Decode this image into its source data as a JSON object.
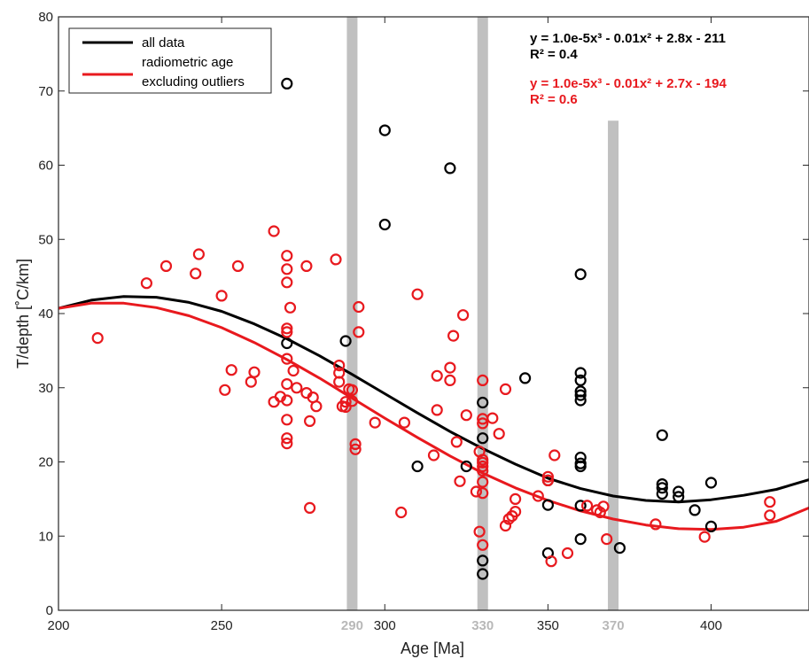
{
  "chart_data": {
    "type": "scatter",
    "xlabel": "Age [Ma]",
    "ylabel": "T/depth [˚C/km]",
    "xlim": [
      200,
      430
    ],
    "ylim": [
      0,
      80
    ],
    "x_ticks": [
      "200",
      "250",
      "300",
      "350",
      "400"
    ],
    "y_ticks": [
      "0",
      "10",
      "20",
      "30",
      "40",
      "50",
      "60",
      "70",
      "80"
    ],
    "grid": false,
    "legend_position": "top-left",
    "legend": [
      {
        "label": "all data",
        "color": "#000000"
      },
      {
        "label": "radiometric age",
        "color": "#e8191e"
      },
      {
        "label": "excluding outliers",
        "color": "#e8191e"
      }
    ],
    "annotations": {
      "black_equation": "y = 1.0e-5x³ - 0.01x² + 2.8x - 211",
      "black_r2": "R² = 0.4",
      "red_equation": "y = 1.0e-5x³ - 0.01x² + 2.7x - 194",
      "red_r2": "R² = 0.6"
    },
    "bands": [
      {
        "x": 290,
        "label": "290",
        "ymax": 80
      },
      {
        "x": 330,
        "label": "330",
        "ymax": 80
      },
      {
        "x": 370,
        "label": "370",
        "ymax": 66
      }
    ],
    "colors": {
      "all_data": "#000000",
      "radiometric": "#e8191e",
      "band": "#c0c0c0",
      "band_label": "#b8b8b8"
    },
    "series": [
      {
        "name": "all data",
        "color": "#000000",
        "fit_curve": [
          [
            200,
            40.7
          ],
          [
            210,
            41.8
          ],
          [
            220,
            42.3
          ],
          [
            230,
            42.2
          ],
          [
            240,
            41.5
          ],
          [
            250,
            40.3
          ],
          [
            260,
            38.6
          ],
          [
            270,
            36.6
          ],
          [
            280,
            34.3
          ],
          [
            290,
            31.8
          ],
          [
            300,
            29.2
          ],
          [
            310,
            26.6
          ],
          [
            320,
            24.1
          ],
          [
            330,
            21.8
          ],
          [
            340,
            19.7
          ],
          [
            350,
            17.8
          ],
          [
            360,
            16.4
          ],
          [
            370,
            15.4
          ],
          [
            380,
            14.8
          ],
          [
            390,
            14.6
          ],
          [
            400,
            14.9
          ],
          [
            410,
            15.5
          ],
          [
            420,
            16.3
          ],
          [
            430,
            17.6
          ]
        ],
        "points": [
          [
            270,
            71
          ],
          [
            270,
            36
          ],
          [
            288,
            36.3
          ],
          [
            300,
            64.7
          ],
          [
            300,
            52
          ],
          [
            320,
            59.6
          ],
          [
            310,
            19.4
          ],
          [
            325,
            19.4
          ],
          [
            330,
            28
          ],
          [
            330,
            23.2
          ],
          [
            330,
            6.7
          ],
          [
            330,
            4.9
          ],
          [
            343,
            31.3
          ],
          [
            350,
            17.5
          ],
          [
            350,
            14.2
          ],
          [
            350,
            7.7
          ],
          [
            360,
            45.3
          ],
          [
            360,
            32
          ],
          [
            360,
            31
          ],
          [
            360,
            29.5
          ],
          [
            360,
            29
          ],
          [
            360,
            28.3
          ],
          [
            360,
            20.6
          ],
          [
            360,
            19.8
          ],
          [
            360,
            19.4
          ],
          [
            360,
            14.1
          ],
          [
            360,
            9.6
          ],
          [
            372,
            8.4
          ],
          [
            385,
            23.6
          ],
          [
            385,
            17
          ],
          [
            385,
            16.5
          ],
          [
            385,
            15.7
          ],
          [
            390,
            16
          ],
          [
            390,
            15.3
          ],
          [
            395,
            13.5
          ],
          [
            400,
            17.2
          ],
          [
            400,
            11.3
          ]
        ]
      },
      {
        "name": "radiometric age excluding outliers",
        "color": "#e8191e",
        "fit_curve": [
          [
            200,
            40.7
          ],
          [
            210,
            41.4
          ],
          [
            220,
            41.4
          ],
          [
            230,
            40.8
          ],
          [
            240,
            39.7
          ],
          [
            250,
            38.1
          ],
          [
            260,
            36.1
          ],
          [
            270,
            33.8
          ],
          [
            280,
            31.3
          ],
          [
            290,
            28.6
          ],
          [
            300,
            25.9
          ],
          [
            310,
            23.3
          ],
          [
            320,
            20.8
          ],
          [
            330,
            18.5
          ],
          [
            340,
            16.5
          ],
          [
            350,
            14.8
          ],
          [
            360,
            13.4
          ],
          [
            370,
            12.3
          ],
          [
            380,
            11.5
          ],
          [
            390,
            11.0
          ],
          [
            400,
            10.9
          ],
          [
            410,
            11.2
          ],
          [
            420,
            12.0
          ],
          [
            430,
            13.8
          ]
        ],
        "points": [
          [
            212,
            36.7
          ],
          [
            227,
            44.1
          ],
          [
            233,
            46.4
          ],
          [
            242,
            45.4
          ],
          [
            243,
            48
          ],
          [
            250,
            42.4
          ],
          [
            251,
            29.7
          ],
          [
            253,
            32.4
          ],
          [
            255,
            46.4
          ],
          [
            259,
            30.8
          ],
          [
            260,
            32.1
          ],
          [
            266,
            51.1
          ],
          [
            266,
            28.1
          ],
          [
            268,
            28.8
          ],
          [
            270,
            47.8
          ],
          [
            270,
            46
          ],
          [
            270,
            44.2
          ],
          [
            270,
            38
          ],
          [
            270,
            37.5
          ],
          [
            270,
            33.9
          ],
          [
            270,
            30.5
          ],
          [
            270,
            28.3
          ],
          [
            270,
            25.7
          ],
          [
            270,
            23.2
          ],
          [
            270,
            22.5
          ],
          [
            271,
            40.8
          ],
          [
            272,
            32.3
          ],
          [
            273,
            30
          ],
          [
            276,
            46.4
          ],
          [
            276,
            29.3
          ],
          [
            277,
            25.5
          ],
          [
            277,
            13.8
          ],
          [
            278,
            28.7
          ],
          [
            279,
            27.5
          ],
          [
            285,
            47.3
          ],
          [
            286,
            33
          ],
          [
            286,
            32
          ],
          [
            286,
            30.8
          ],
          [
            287,
            27.5
          ],
          [
            288,
            28.1
          ],
          [
            288,
            27.4
          ],
          [
            289,
            29.8
          ],
          [
            290,
            28.2
          ],
          [
            290,
            29.7
          ],
          [
            291,
            22.4
          ],
          [
            291,
            21.7
          ],
          [
            292,
            40.9
          ],
          [
            292,
            37.5
          ],
          [
            297,
            25.3
          ],
          [
            305,
            13.2
          ],
          [
            306,
            25.3
          ],
          [
            310,
            42.6
          ],
          [
            315,
            20.9
          ],
          [
            316,
            31.6
          ],
          [
            316,
            27
          ],
          [
            320,
            32.7
          ],
          [
            320,
            31
          ],
          [
            321,
            37
          ],
          [
            322,
            22.7
          ],
          [
            323,
            17.4
          ],
          [
            324,
            39.8
          ],
          [
            325,
            26.3
          ],
          [
            328,
            16
          ],
          [
            329,
            21.4
          ],
          [
            329,
            10.6
          ],
          [
            330,
            31
          ],
          [
            330,
            25.8
          ],
          [
            330,
            25.2
          ],
          [
            330,
            20.3
          ],
          [
            330,
            19.9
          ],
          [
            330,
            19.4
          ],
          [
            330,
            18.8
          ],
          [
            330,
            17.3
          ],
          [
            330,
            15.8
          ],
          [
            330,
            8.8
          ],
          [
            333,
            25.9
          ],
          [
            335,
            23.8
          ],
          [
            337,
            29.8
          ],
          [
            337,
            11.4
          ],
          [
            338,
            12.3
          ],
          [
            339,
            12.7
          ],
          [
            340,
            15
          ],
          [
            340,
            13.3
          ],
          [
            347,
            15.4
          ],
          [
            350,
            18
          ],
          [
            350,
            17.5
          ],
          [
            351,
            6.6
          ],
          [
            352,
            20.9
          ],
          [
            356,
            7.7
          ],
          [
            362,
            14.1
          ],
          [
            365,
            13.5
          ],
          [
            366,
            13.2
          ],
          [
            367,
            14
          ],
          [
            368,
            9.6
          ],
          [
            383,
            11.6
          ],
          [
            398,
            9.9
          ],
          [
            418,
            14.6
          ],
          [
            418,
            12.8
          ]
        ]
      }
    ]
  }
}
